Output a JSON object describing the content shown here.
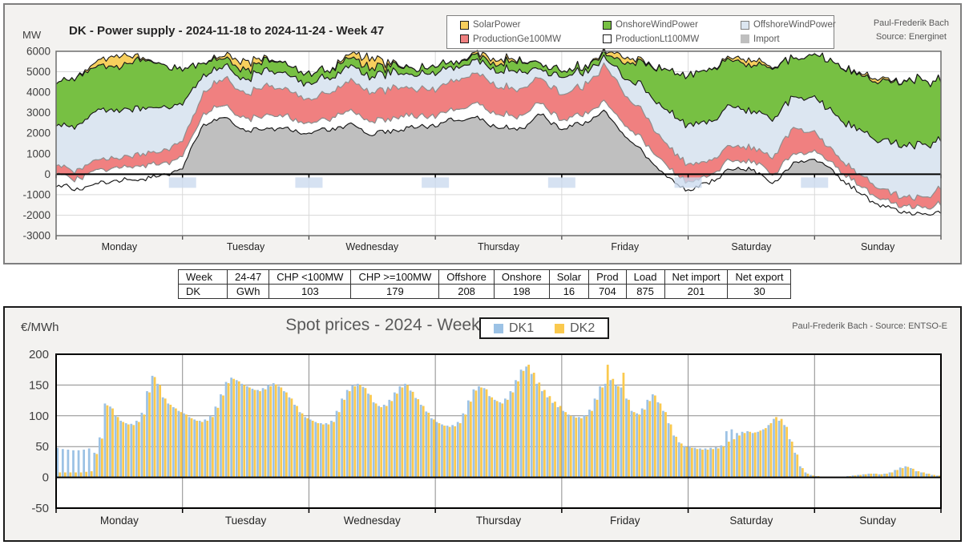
{
  "top_chart": {
    "title": "DK - Power supply - 2024-11-18 to 2024-11-24 - Week 47",
    "y_axis_label": "MW",
    "source_line1": "Paul-Frederik Bach",
    "source_line2": "Source: Energinet",
    "legend": [
      {
        "label": "SolarPower",
        "color": "#F7CF5D",
        "border": "#1a1a1a"
      },
      {
        "label": "OnshoreWindPower",
        "color": "#77C043",
        "border": "#1a1a1a"
      },
      {
        "label": "OffshoreWindPower",
        "color": "#DCE6F1",
        "border": "#808080"
      },
      {
        "label": "ProductionGe100MW",
        "color": "#F08080",
        "border": "#1a1a1a"
      },
      {
        "label": "ProductionLt100MW",
        "color": "#FFFFFF",
        "border": "#1a1a1a"
      },
      {
        "label": "Import",
        "color": "#BFBFBF",
        "border": "#BFBFBF"
      }
    ]
  },
  "summary_table": {
    "headers": [
      "Week",
      "24-47",
      "CHP <100MW",
      "CHP >=100MW",
      "Offshore",
      "Onshore",
      "Solar",
      "Prod",
      "Load",
      "Net import",
      "Net export"
    ],
    "row": [
      "DK",
      "GWh",
      "103",
      "179",
      "208",
      "198",
      "16",
      "704",
      "875",
      "201",
      "30"
    ]
  },
  "bottom_chart": {
    "title": "Spot prices - 2024 - Week 47",
    "y_axis_label": "€/MWh",
    "source": "Paul-Frederik Bach - Source: ENTSO-E",
    "legend": [
      {
        "label": "DK1",
        "color": "#9CC2E5"
      },
      {
        "label": "DK2",
        "color": "#FAC94E"
      }
    ]
  },
  "chart_data": [
    {
      "type": "area",
      "stacked": true,
      "title": "DK - Power supply - 2024-11-18 to 2024-11-24 - Week 47",
      "ylabel": "MW",
      "ylim": [
        -3000,
        6000
      ],
      "y_ticks": [
        6000,
        5000,
        4000,
        3000,
        2000,
        1000,
        0,
        -1000,
        -2000,
        -3000
      ],
      "x_categories": [
        "Monday",
        "Tuesday",
        "Wednesday",
        "Thursday",
        "Friday",
        "Saturday",
        "Sunday"
      ],
      "x_hours_step": 4,
      "grid": true,
      "legend_position": "top",
      "note": "values in MW sampled every 4 hours, stacking order bottom-to-top; Import may be negative (export)",
      "series": [
        {
          "name": "Import",
          "color": "#BFBFBF",
          "stroke": "#1a1a1a",
          "values": [
            -550,
            -700,
            -400,
            -300,
            -200,
            -100,
            300,
            2400,
            2800,
            2100,
            2200,
            2200,
            2000,
            2200,
            2400,
            2000,
            2100,
            2300,
            2400,
            2700,
            2700,
            2300,
            2200,
            2900,
            2200,
            2500,
            3100,
            1900,
            900,
            -200,
            -800,
            -400,
            200,
            300,
            -500,
            500,
            800,
            0,
            -800,
            -1500,
            -1800,
            -2000,
            -1800
          ]
        },
        {
          "name": "ProductionLt100MW",
          "color": "#FFFFFF",
          "stroke": "#1a1a1a",
          "values": [
            550,
            500,
            700,
            650,
            700,
            600,
            550,
            500,
            650,
            550,
            650,
            600,
            500,
            500,
            700,
            600,
            650,
            550,
            450,
            500,
            700,
            600,
            650,
            550,
            400,
            450,
            450,
            550,
            600,
            500,
            400,
            350,
            450,
            400,
            450,
            450,
            400,
            350,
            350,
            350,
            300,
            350,
            400
          ]
        },
        {
          "name": "ProductionGe100MW",
          "color": "#F08080",
          "stroke": "#8f8f8f",
          "values": [
            450,
            400,
            500,
            500,
            550,
            600,
            800,
            1000,
            1350,
            1250,
            1400,
            1300,
            1200,
            1250,
            1500,
            1400,
            1450,
            1300,
            1300,
            1400,
            1500,
            1350,
            1300,
            1200,
            1250,
            1350,
            1750,
            1500,
            1300,
            1000,
            900,
            700,
            700,
            650,
            800,
            1300,
            900,
            600,
            550,
            500,
            450,
            500,
            700
          ]
        },
        {
          "name": "OffshoreWindPower",
          "color": "#DCE6F1",
          "stroke": "#8f8f8f",
          "values": [
            1900,
            2200,
            2400,
            2350,
            2250,
            2100,
            1800,
            800,
            600,
            650,
            800,
            700,
            800,
            750,
            700,
            750,
            800,
            650,
            800,
            600,
            600,
            750,
            900,
            400,
            900,
            700,
            350,
            800,
            1300,
            1700,
            1900,
            1900,
            1900,
            1800,
            1900,
            1500,
            1700,
            1900,
            2100,
            2300,
            2500,
            2600,
            2400
          ]
        },
        {
          "name": "OnshoreWindPower",
          "color": "#77C043",
          "stroke": "#1a1a1a",
          "values": [
            2100,
            2400,
            2200,
            2100,
            2450,
            2100,
            1700,
            600,
            400,
            450,
            500,
            500,
            450,
            400,
            400,
            400,
            350,
            300,
            300,
            250,
            250,
            300,
            500,
            300,
            250,
            250,
            200,
            700,
            1300,
            2000,
            2400,
            2600,
            2300,
            2200,
            2500,
            1900,
            2100,
            2500,
            2700,
            2800,
            3100,
            3200,
            2900
          ]
        },
        {
          "name": "SolarPower",
          "color": "#F7CF5D",
          "stroke": "#1a1a1a",
          "values": [
            0,
            0,
            250,
            600,
            80,
            0,
            0,
            0,
            150,
            450,
            60,
            0,
            0,
            0,
            200,
            500,
            70,
            0,
            0,
            0,
            120,
            250,
            40,
            0,
            0,
            0,
            100,
            300,
            50,
            0,
            0,
            0,
            100,
            250,
            40,
            0,
            0,
            0,
            50,
            150,
            30,
            0,
            0
          ]
        }
      ]
    },
    {
      "type": "bar",
      "title": "Spot prices - 2024 - Week 47",
      "ylabel": "€/MWh",
      "ylim": [
        -50,
        200
      ],
      "y_ticks": [
        200,
        150,
        100,
        50,
        0,
        -50
      ],
      "x_categories": [
        "Monday",
        "Tuesday",
        "Wednesday",
        "Thursday",
        "Friday",
        "Saturday",
        "Sunday"
      ],
      "x_hours_step": 1,
      "grid": true,
      "legend_position": "top",
      "note": "hourly spot prices EUR/MWh, Monday 00:00 to Sunday 23:00",
      "series": [
        {
          "name": "DK1",
          "color": "#9CC2E5",
          "values": [
            48,
            46,
            45,
            44,
            44,
            45,
            47,
            40,
            65,
            120,
            115,
            100,
            92,
            88,
            87,
            92,
            105,
            140,
            165,
            152,
            130,
            120,
            114,
            108,
            104,
            98,
            94,
            92,
            94,
            100,
            115,
            135,
            155,
            162,
            158,
            152,
            148,
            144,
            142,
            145,
            150,
            153,
            148,
            140,
            130,
            118,
            106,
            98,
            94,
            90,
            88,
            88,
            92,
            108,
            128,
            142,
            150,
            152,
            147,
            136,
            122,
            116,
            118,
            126,
            138,
            148,
            152,
            141,
            129,
            118,
            107,
            96,
            90,
            86,
            84,
            85,
            90,
            104,
            125,
            143,
            148,
            145,
            132,
            126,
            122,
            128,
            140,
            158,
            175,
            180,
            168,
            152,
            140,
            130,
            121,
            114,
            108,
            102,
            99,
            98,
            101,
            110,
            128,
            148,
            152,
            158,
            150,
            146,
            128,
            108,
            104,
            112,
            126,
            135,
            122,
            108,
            88,
            68,
            57,
            51,
            50,
            48,
            47,
            47,
            48,
            49,
            52,
            75,
            78,
            72,
            74,
            75,
            72,
            74,
            78,
            85,
            95,
            92,
            85,
            62,
            40,
            18,
            8,
            4,
            2,
            1,
            1,
            1,
            1,
            1,
            2,
            3,
            4,
            5,
            6,
            6,
            5,
            6,
            8,
            12,
            16,
            18,
            15,
            10,
            8,
            6,
            4,
            3
          ]
        },
        {
          "name": "DK2",
          "color": "#FAC94E",
          "values": [
            8,
            8,
            8,
            8,
            8,
            9,
            10,
            38,
            63,
            117,
            112,
            98,
            90,
            86,
            85,
            90,
            102,
            138,
            163,
            150,
            128,
            118,
            112,
            106,
            102,
            96,
            92,
            90,
            92,
            98,
            113,
            133,
            153,
            160,
            156,
            150,
            146,
            142,
            140,
            143,
            148,
            151,
            146,
            138,
            128,
            116,
            104,
            96,
            92,
            88,
            86,
            86,
            90,
            106,
            126,
            140,
            148,
            150,
            145,
            134,
            120,
            114,
            116,
            124,
            136,
            146,
            150,
            139,
            127,
            116,
            105,
            94,
            88,
            84,
            82,
            83,
            88,
            102,
            123,
            141,
            146,
            143,
            130,
            124,
            120,
            126,
            138,
            156,
            173,
            183,
            170,
            154,
            142,
            132,
            123,
            116,
            106,
            100,
            97,
            96,
            99,
            108,
            126,
            146,
            183,
            160,
            148,
            170,
            126,
            106,
            102,
            110,
            124,
            133,
            120,
            106,
            86,
            66,
            55,
            49,
            48,
            46,
            45,
            45,
            46,
            47,
            50,
            58,
            62,
            68,
            72,
            74,
            73,
            76,
            80,
            88,
            98,
            95,
            82,
            58,
            37,
            15,
            6,
            3,
            2,
            1,
            1,
            1,
            1,
            1,
            2,
            3,
            4,
            5,
            6,
            6,
            5,
            6,
            8,
            12,
            15,
            17,
            14,
            10,
            8,
            6,
            4,
            3
          ]
        }
      ]
    }
  ]
}
